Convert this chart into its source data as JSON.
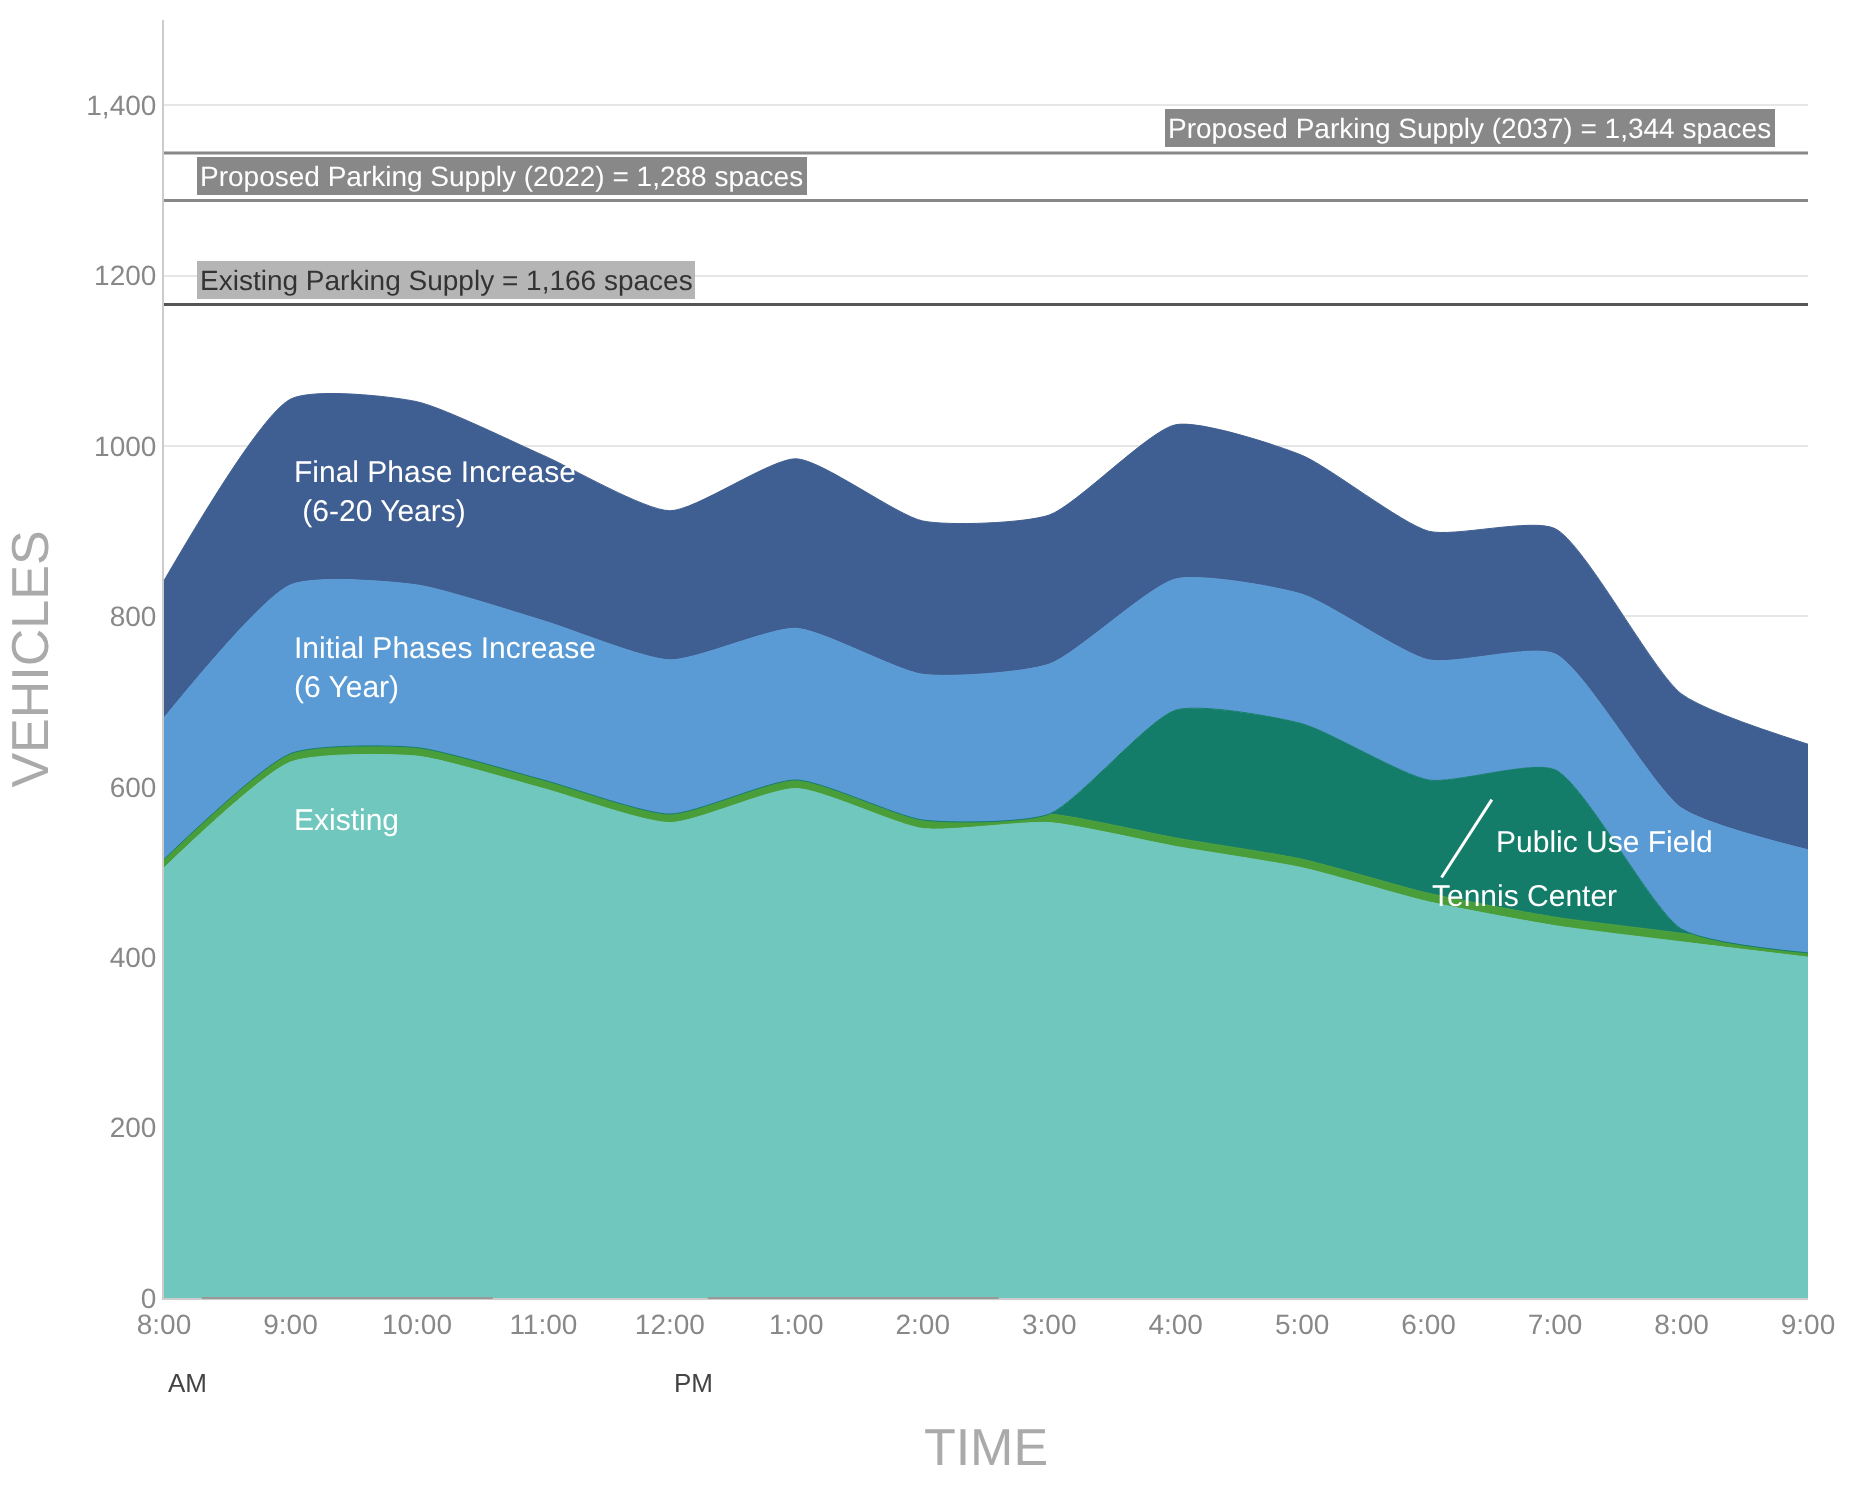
{
  "chart_data": {
    "type": "area",
    "stacked": true,
    "xlabel": "TIME",
    "ylabel": "VEHICLES",
    "categories": [
      "8:00",
      "9:00",
      "10:00",
      "11:00",
      "12:00",
      "1:00",
      "2:00",
      "3:00",
      "4:00",
      "5:00",
      "6:00",
      "7:00",
      "8:00",
      "9:00"
    ],
    "series": [
      {
        "name": "Existing",
        "color": "#6fc7bd",
        "values": [
          505,
          629,
          636,
          598,
          558,
          598,
          551,
          558,
          530,
          505,
          465,
          437,
          418,
          400
        ]
      },
      {
        "name": "Tennis Center",
        "color": "#4a9e3a",
        "values": [
          10,
          10,
          10,
          10,
          10,
          10,
          10,
          10,
          10,
          10,
          10,
          10,
          10,
          5
        ]
      },
      {
        "name": "Public Use Field",
        "color": "#137d69",
        "values": [
          0,
          0,
          0,
          0,
          0,
          0,
          0,
          0,
          150,
          159,
          133,
          173,
          5,
          0
        ]
      },
      {
        "name": "Initial Phases Increase\n(6 Year)",
        "color": "#5a9bd5",
        "values": [
          166,
          198,
          191,
          187,
          181,
          178,
          171,
          176,
          154,
          152,
          141,
          136,
          142,
          121
        ]
      },
      {
        "name": "Final Phase Increase\n (6-20 Years)",
        "color": "#3f5e91",
        "values": [
          161,
          218,
          215,
          194,
          175,
          199,
          180,
          175,
          181,
          163,
          151,
          147,
          134,
          124
        ]
      }
    ],
    "ylim": [
      0,
      1500
    ],
    "yticks": [
      0,
      200,
      400,
      600,
      800,
      1000,
      1200,
      {
        "value": 1400,
        "label": "1,400"
      }
    ],
    "grid": "y",
    "legend": false,
    "ref_lines": [
      {
        "axis": "y",
        "value": 1166,
        "label": "Existing Parking Supply = 1,166 spaces",
        "color": "#555555"
      },
      {
        "axis": "y",
        "value": 1288,
        "label": "Proposed Parking Supply (2022) = 1,288 spaces",
        "color": "#888888"
      },
      {
        "axis": "y",
        "value": 1344,
        "label": "Proposed Parking Supply (2037) = 1,344 spaces",
        "color": "#888888"
      }
    ],
    "annotations": [
      "AM",
      "PM"
    ]
  }
}
